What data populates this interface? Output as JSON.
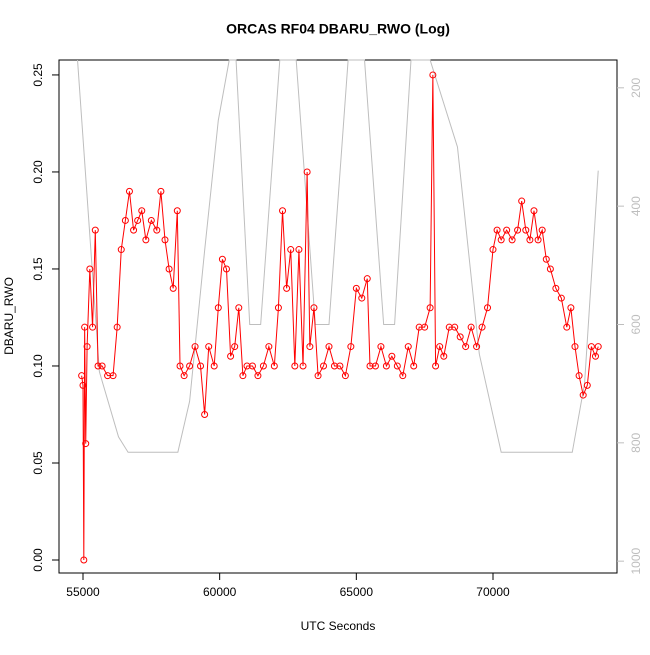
{
  "chart_data": {
    "type": "line",
    "title": "ORCAS RF04 DBARU_RWO (Log)",
    "x_label": "UTC Seconds",
    "y_label": "DBARU_RWO",
    "xlim": [
      54122,
      74537
    ],
    "ylim": [
      -0.0067,
      0.2577
    ],
    "y2lim": [
      1020,
      153
    ],
    "xticks": [
      55000,
      60000,
      65000,
      70000
    ],
    "yticks": [
      {
        "value": 0,
        "label": "0.00"
      },
      {
        "value": 0.05,
        "label": "0.05"
      },
      {
        "value": 0.1,
        "label": "0.10"
      },
      {
        "value": 0.15,
        "label": "0.15"
      },
      {
        "value": 0.2,
        "label": "0.20"
      },
      {
        "value": 0.25,
        "label": "0.25"
      }
    ],
    "y2ticks": [
      200,
      400,
      600,
      800,
      1000
    ],
    "series": [
      {
        "color": "#bebebe",
        "axis": "y2",
        "markers": false,
        "x": [
          54800,
          55600,
          56300,
          56650,
          58470,
          58900,
          59450,
          59950,
          60350,
          60600,
          61100,
          61500,
          62200,
          62800,
          63500,
          64000,
          64700,
          65300,
          66000,
          66400,
          67000,
          67700,
          68700,
          69500,
          70300,
          72900,
          73350,
          73850
        ],
        "values": [
          153,
          680,
          790,
          816,
          816,
          730,
          475,
          255,
          153,
          153,
          600,
          600,
          153,
          153,
          600,
          600,
          153,
          153,
          600,
          600,
          153,
          153,
          300,
          650,
          816,
          816,
          700,
          340
        ]
      },
      {
        "color": "#ff0000",
        "axis": "y",
        "markers": true,
        "x": [
          54950,
          55000,
          55030,
          55060,
          55100,
          55150,
          55250,
          55350,
          55450,
          55550,
          55700,
          55900,
          56100,
          56250,
          56400,
          56550,
          56700,
          56850,
          57000,
          57150,
          57300,
          57500,
          57700,
          57850,
          58000,
          58150,
          58300,
          58450,
          58550,
          58700,
          58900,
          59100,
          59300,
          59450,
          59600,
          59800,
          59950,
          60100,
          60250,
          60400,
          60550,
          60700,
          60850,
          61000,
          61200,
          61400,
          61600,
          61800,
          62000,
          62150,
          62300,
          62450,
          62600,
          62750,
          62900,
          63050,
          63200,
          63300,
          63450,
          63600,
          63800,
          64000,
          64200,
          64400,
          64600,
          64800,
          65000,
          65200,
          65400,
          65500,
          65700,
          65900,
          66100,
          66300,
          66500,
          66700,
          66900,
          67100,
          67300,
          67500,
          67700,
          67800,
          67900,
          68050,
          68200,
          68400,
          68600,
          68800,
          69000,
          69200,
          69400,
          69600,
          69800,
          70000,
          70150,
          70300,
          70500,
          70700,
          70900,
          71050,
          71200,
          71350,
          71500,
          71650,
          71800,
          71950,
          72100,
          72300,
          72500,
          72700,
          72850,
          73000,
          73150,
          73300,
          73450,
          73600,
          73750,
          73850
        ],
        "values": [
          0.095,
          0.09,
          0.0,
          0.12,
          0.06,
          0.11,
          0.15,
          0.12,
          0.17,
          0.1,
          0.1,
          0.095,
          0.095,
          0.12,
          0.16,
          0.175,
          0.19,
          0.17,
          0.175,
          0.18,
          0.165,
          0.175,
          0.17,
          0.19,
          0.165,
          0.15,
          0.14,
          0.18,
          0.1,
          0.095,
          0.1,
          0.11,
          0.1,
          0.075,
          0.11,
          0.1,
          0.13,
          0.155,
          0.15,
          0.105,
          0.11,
          0.13,
          0.095,
          0.1,
          0.1,
          0.095,
          0.1,
          0.11,
          0.1,
          0.13,
          0.18,
          0.14,
          0.16,
          0.1,
          0.16,
          0.1,
          0.2,
          0.11,
          0.13,
          0.095,
          0.1,
          0.11,
          0.1,
          0.1,
          0.095,
          0.11,
          0.14,
          0.135,
          0.145,
          0.1,
          0.1,
          0.11,
          0.1,
          0.105,
          0.1,
          0.095,
          0.11,
          0.1,
          0.12,
          0.12,
          0.13,
          0.25,
          0.1,
          0.11,
          0.105,
          0.12,
          0.12,
          0.115,
          0.11,
          0.12,
          0.11,
          0.12,
          0.13,
          0.16,
          0.17,
          0.165,
          0.17,
          0.165,
          0.17,
          0.185,
          0.17,
          0.165,
          0.18,
          0.165,
          0.17,
          0.155,
          0.15,
          0.14,
          0.135,
          0.12,
          0.13,
          0.11,
          0.095,
          0.085,
          0.09,
          0.11,
          0.105,
          0.11
        ]
      }
    ]
  }
}
